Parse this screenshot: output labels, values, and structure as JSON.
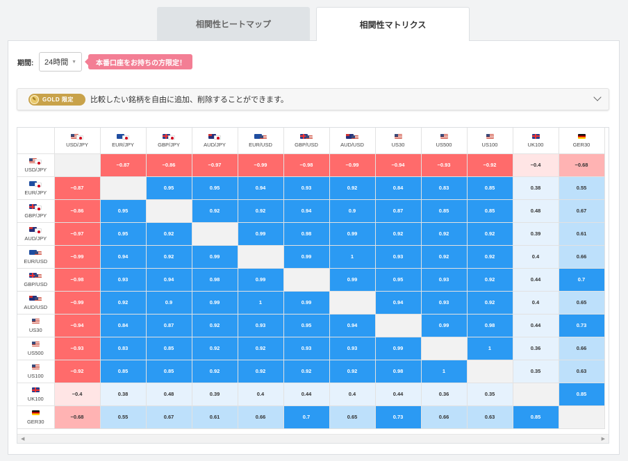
{
  "tabs": [
    {
      "label": "相関性ヒートマップ",
      "active": false
    },
    {
      "label": "相関性マトリクス",
      "active": true
    }
  ],
  "period": {
    "label": "期間:",
    "value": "24時間"
  },
  "promo_badge": "本番口座をお持ちの方限定！",
  "gold_banner": {
    "badge": "GOLD 限定",
    "text": "比較したい銘柄を自由に追加、削除することができます。"
  },
  "colors": {
    "negative_strong": "#ff6b6b",
    "negative_light": "#ffb3b3",
    "positive_strong": "#2b9af3",
    "positive_medium": "#bde0fb",
    "positive_light": "#e6f2fd",
    "diagonal": "#f2f2f2"
  },
  "instruments": [
    {
      "label": "USD/JPY",
      "flags": [
        "US",
        "JP"
      ]
    },
    {
      "label": "EUR/JPY",
      "flags": [
        "EU",
        "JP"
      ]
    },
    {
      "label": "GBP/JPY",
      "flags": [
        "GB",
        "JP"
      ]
    },
    {
      "label": "AUD/JPY",
      "flags": [
        "AU",
        "JP"
      ]
    },
    {
      "label": "EUR/USD",
      "flags": [
        "EU",
        "US"
      ]
    },
    {
      "label": "GBP/USD",
      "flags": [
        "GB",
        "US"
      ]
    },
    {
      "label": "AUD/USD",
      "flags": [
        "AU",
        "US"
      ]
    },
    {
      "label": "US30",
      "flags": [
        "US"
      ]
    },
    {
      "label": "US500",
      "flags": [
        "US"
      ]
    },
    {
      "label": "US100",
      "flags": [
        "US"
      ]
    },
    {
      "label": "UK100",
      "flags": [
        "GB"
      ]
    },
    {
      "label": "GER30",
      "flags": [
        "DE"
      ]
    }
  ],
  "matrix": [
    [
      null,
      -0.87,
      -0.86,
      -0.97,
      -0.99,
      -0.98,
      -0.99,
      -0.94,
      -0.93,
      -0.92,
      -0.4,
      -0.68
    ],
    [
      -0.87,
      null,
      0.95,
      0.95,
      0.94,
      0.93,
      0.92,
      0.84,
      0.83,
      0.85,
      0.38,
      0.55
    ],
    [
      -0.86,
      0.95,
      null,
      0.92,
      0.92,
      0.94,
      0.9,
      0.87,
      0.85,
      0.85,
      0.48,
      0.67
    ],
    [
      -0.97,
      0.95,
      0.92,
      null,
      0.99,
      0.98,
      0.99,
      0.92,
      0.92,
      0.92,
      0.39,
      0.61
    ],
    [
      -0.99,
      0.94,
      0.92,
      0.99,
      null,
      0.99,
      1,
      0.93,
      0.92,
      0.92,
      0.4,
      0.66
    ],
    [
      -0.98,
      0.93,
      0.94,
      0.98,
      0.99,
      null,
      0.99,
      0.95,
      0.93,
      0.92,
      0.44,
      0.7
    ],
    [
      -0.99,
      0.92,
      0.9,
      0.99,
      1,
      0.99,
      null,
      0.94,
      0.93,
      0.92,
      0.4,
      0.65
    ],
    [
      -0.94,
      0.84,
      0.87,
      0.92,
      0.93,
      0.95,
      0.94,
      null,
      0.99,
      0.98,
      0.44,
      0.73
    ],
    [
      -0.93,
      0.83,
      0.85,
      0.92,
      0.92,
      0.93,
      0.93,
      0.99,
      null,
      1,
      0.36,
      0.66
    ],
    [
      -0.92,
      0.85,
      0.85,
      0.92,
      0.92,
      0.92,
      0.92,
      0.98,
      1,
      null,
      0.35,
      0.63
    ],
    [
      -0.4,
      0.38,
      0.48,
      0.39,
      0.4,
      0.44,
      0.4,
      0.44,
      0.36,
      0.35,
      null,
      0.85
    ],
    [
      -0.68,
      0.55,
      0.67,
      0.61,
      0.66,
      0.7,
      0.65,
      0.73,
      0.66,
      0.63,
      0.85,
      null
    ]
  ]
}
